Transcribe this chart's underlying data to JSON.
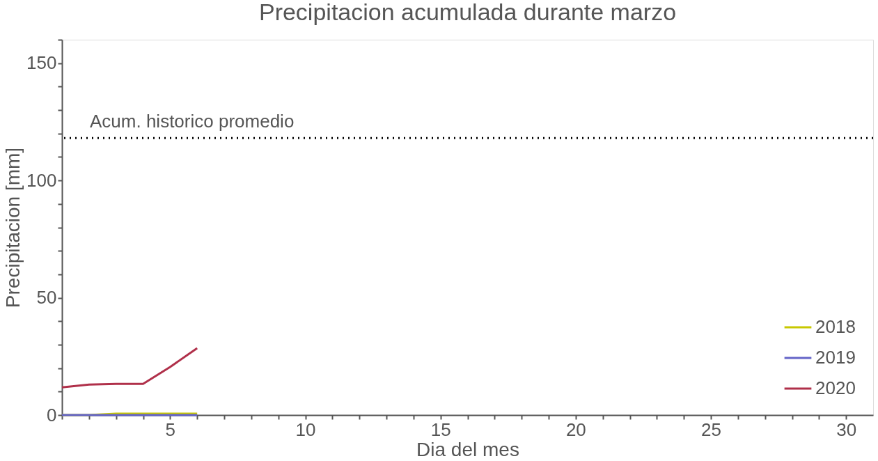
{
  "chart_data": {
    "type": "line",
    "title": "Precipitacion acumulada durante marzo",
    "xlabel": "Dia del mes",
    "ylabel": "Precipitacion [mm]",
    "x": [
      1,
      2,
      3,
      4,
      5,
      6
    ],
    "series": [
      {
        "name": "2018",
        "color": "#c8c800",
        "values": [
          0,
          0,
          0.6,
          0.6,
          0.6,
          0.6
        ]
      },
      {
        "name": "2019",
        "color": "#6464c8",
        "values": [
          0,
          0,
          0,
          0,
          0,
          0
        ]
      },
      {
        "name": "2020",
        "color": "#b0304a",
        "values": [
          11.8,
          13.0,
          13.3,
          13.3,
          20.5,
          28.5
        ]
      }
    ],
    "xlim": [
      1,
      31
    ],
    "ylim": [
      0,
      160
    ],
    "xticks": [
      {
        "value": 1,
        "label": null
      },
      {
        "value": 2,
        "label": null
      },
      {
        "value": 3,
        "label": null
      },
      {
        "value": 4,
        "label": null
      },
      5,
      {
        "value": 6,
        "label": null
      },
      {
        "value": 7,
        "label": null
      },
      {
        "value": 8,
        "label": null
      },
      {
        "value": 9,
        "label": null
      },
      10,
      {
        "value": 11,
        "label": null
      },
      {
        "value": 12,
        "label": null
      },
      {
        "value": 13,
        "label": null
      },
      {
        "value": 14,
        "label": null
      },
      15,
      {
        "value": 16,
        "label": null
      },
      {
        "value": 17,
        "label": null
      },
      {
        "value": 18,
        "label": null
      },
      {
        "value": 19,
        "label": null
      },
      20,
      {
        "value": 21,
        "label": null
      },
      {
        "value": 22,
        "label": null
      },
      {
        "value": 23,
        "label": null
      },
      {
        "value": 24,
        "label": null
      },
      25,
      {
        "value": 26,
        "label": null
      },
      {
        "value": 27,
        "label": null
      },
      {
        "value": 28,
        "label": null
      },
      {
        "value": 29,
        "label": null
      },
      30
    ],
    "yticks": [
      0,
      {
        "value": 10,
        "label": null
      },
      {
        "value": 20,
        "label": null
      },
      {
        "value": 30,
        "label": null
      },
      {
        "value": 40,
        "label": null
      },
      50,
      {
        "value": 60,
        "label": null
      },
      {
        "value": 70,
        "label": null
      },
      {
        "value": 80,
        "label": null
      },
      {
        "value": 90,
        "label": null
      },
      100,
      {
        "value": 110,
        "label": null
      },
      {
        "value": 120,
        "label": null
      },
      {
        "value": 130,
        "label": null
      },
      {
        "value": 140,
        "label": null
      },
      150,
      {
        "value": 160,
        "label": null
      }
    ],
    "ref_lines": [
      {
        "axis": "y",
        "value": 118.1,
        "label": "Acum. historico promedio",
        "color": "#000000",
        "line_style": "dotted"
      }
    ],
    "legend": "bottom right",
    "grid": false,
    "marker": "none",
    "line_style": "solid"
  }
}
